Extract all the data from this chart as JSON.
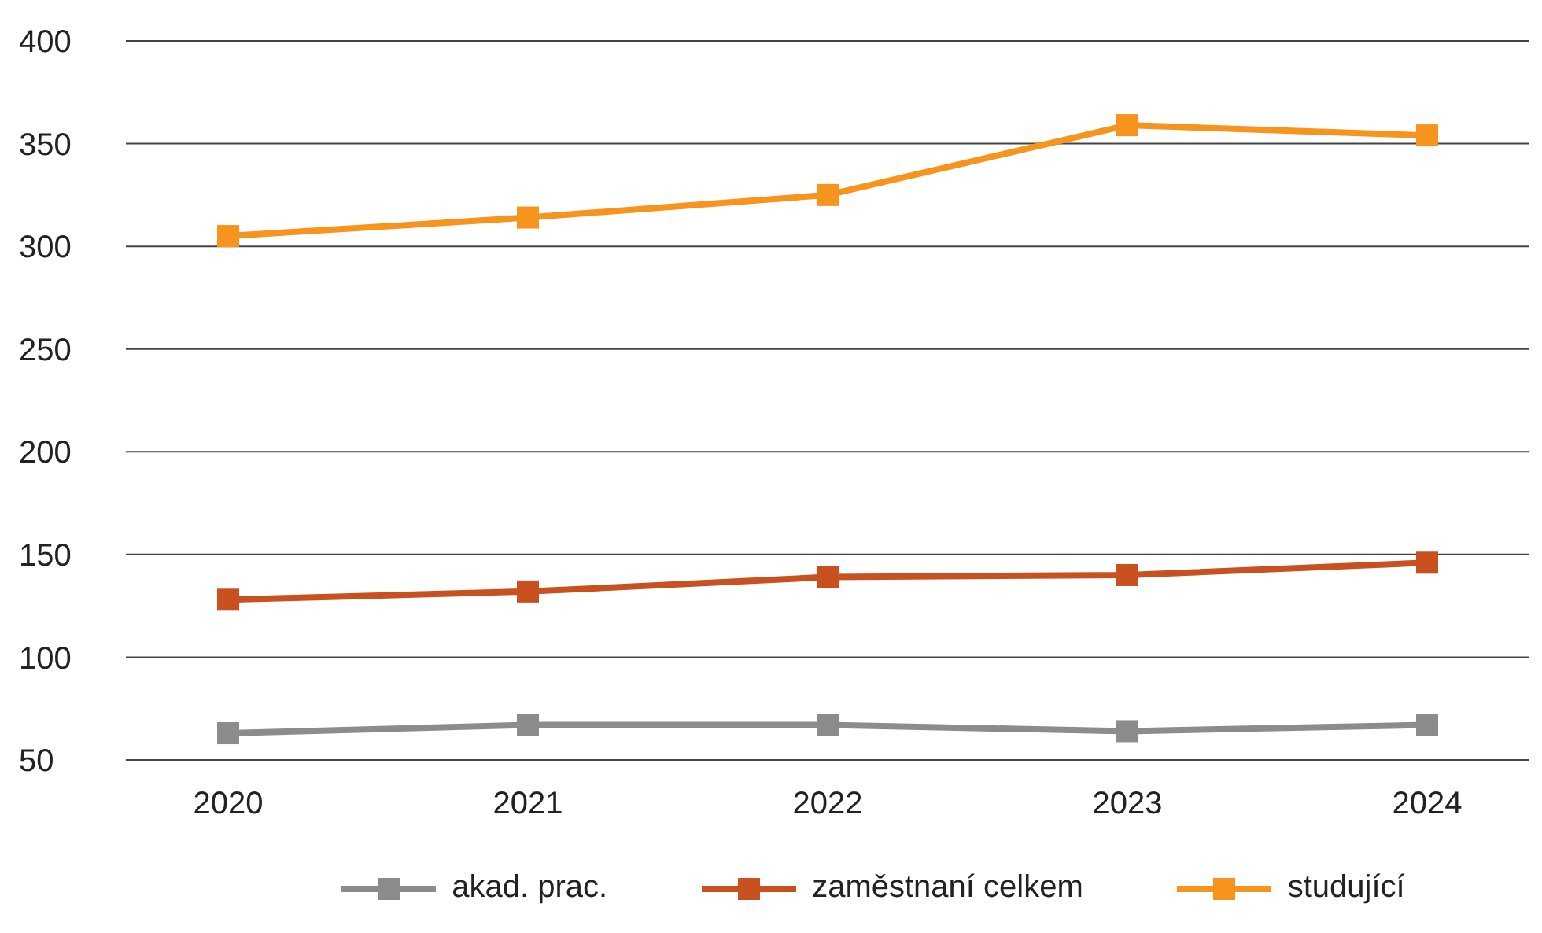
{
  "chart_data": {
    "type": "line",
    "categories": [
      "2020",
      "2021",
      "2022",
      "2023",
      "2024"
    ],
    "series": [
      {
        "name": "akad. prac.",
        "color": "#8c8c8c",
        "values": [
          63,
          67,
          67,
          64,
          67
        ]
      },
      {
        "name": "zaměstnaní celkem",
        "color": "#c9511f",
        "values": [
          128,
          132,
          139,
          140,
          146
        ]
      },
      {
        "name": "studující",
        "color": "#f7941d",
        "values": [
          305,
          314,
          325,
          359,
          354
        ]
      }
    ],
    "ylim": [
      50,
      400
    ],
    "yticks": [
      50,
      100,
      150,
      200,
      250,
      300,
      350,
      400
    ],
    "grid": "y",
    "legend": "bottom",
    "marker": "square",
    "line_style": "solid"
  }
}
